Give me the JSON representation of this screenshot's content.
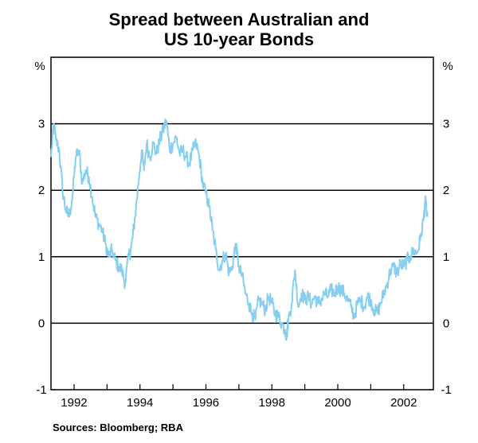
{
  "chart_data": {
    "type": "line",
    "title_lines": [
      "Spread between Australian and",
      "US 10-year Bonds"
    ],
    "unit_left": "%",
    "unit_right": "%",
    "source": "Sources: Bloomberg; RBA",
    "xlim": [
      1991.3,
      2002.9
    ],
    "ylim": [
      -1,
      4
    ],
    "y_ticks": [
      -1,
      0,
      1,
      2,
      3
    ],
    "y_tick_labels": [
      "-1",
      "0",
      "1",
      "2",
      "3"
    ],
    "x_ticks": [
      1992,
      1994,
      1996,
      1998,
      2000,
      2002
    ],
    "x_tick_labels": [
      "1992",
      "1994",
      "1996",
      "1998",
      "2000",
      "2002"
    ],
    "gridlines": [
      0,
      1,
      2,
      3
    ],
    "line_color": "#86cff0",
    "series": [
      {
        "x": [
          1991.3,
          1991.38,
          1991.45,
          1991.55,
          1991.65,
          1991.75,
          1991.85,
          1991.95,
          1992.05,
          1992.15,
          1992.25,
          1992.35,
          1992.45,
          1992.55,
          1992.65,
          1992.75,
          1992.85,
          1992.95,
          1993.05,
          1993.15,
          1993.25,
          1993.35,
          1993.45,
          1993.55,
          1993.65,
          1993.72,
          1993.78,
          1993.85,
          1993.95,
          1994.05,
          1994.12,
          1994.2,
          1994.3,
          1994.4,
          1994.5,
          1994.6,
          1994.7,
          1994.8,
          1994.9,
          1995.0,
          1995.1,
          1995.2,
          1995.3,
          1995.4,
          1995.5,
          1995.6,
          1995.7,
          1995.8,
          1995.9,
          1996.0,
          1996.1,
          1996.2,
          1996.3,
          1996.4,
          1996.5,
          1996.6,
          1996.7,
          1996.8,
          1996.9,
          1997.0,
          1997.1,
          1997.2,
          1997.3,
          1997.4,
          1997.5,
          1997.6,
          1997.7,
          1997.8,
          1997.9,
          1998.0,
          1998.1,
          1998.2,
          1998.3,
          1998.4,
          1998.45,
          1998.5,
          1998.6,
          1998.7,
          1998.8,
          1998.9,
          1999.0,
          1999.1,
          1999.2,
          1999.3,
          1999.4,
          1999.5,
          1999.6,
          1999.7,
          1999.8,
          1999.9,
          2000.0,
          2000.1,
          2000.2,
          2000.3,
          2000.4,
          2000.5,
          2000.6,
          2000.7,
          2000.8,
          2000.9,
          2001.0,
          2001.1,
          2001.2,
          2001.3,
          2001.4,
          2001.5,
          2001.6,
          2001.7,
          2001.8,
          2001.9,
          2002.0,
          2002.1,
          2002.2,
          2002.3,
          2002.4,
          2002.5,
          2002.6,
          2002.65,
          2002.72
        ],
        "values": [
          2.5,
          3.0,
          2.75,
          2.6,
          2.0,
          1.7,
          1.6,
          1.9,
          2.5,
          2.6,
          2.1,
          2.3,
          2.2,
          1.9,
          1.6,
          1.5,
          1.4,
          1.2,
          1.0,
          1.1,
          0.95,
          0.85,
          0.8,
          0.6,
          1.0,
          1.1,
          1.3,
          1.6,
          2.1,
          2.6,
          2.3,
          2.7,
          2.5,
          2.7,
          2.55,
          2.75,
          2.9,
          3.05,
          2.6,
          2.7,
          2.8,
          2.55,
          2.6,
          2.5,
          2.4,
          2.6,
          2.7,
          2.5,
          2.1,
          1.95,
          1.75,
          1.4,
          1.1,
          0.8,
          0.95,
          1.05,
          0.75,
          0.85,
          1.2,
          0.85,
          0.7,
          0.45,
          0.3,
          0.15,
          0.05,
          0.35,
          0.3,
          0.2,
          0.4,
          0.3,
          0.15,
          0.1,
          0.0,
          -0.1,
          -0.2,
          0.05,
          0.3,
          0.8,
          0.25,
          0.45,
          0.35,
          0.4,
          0.3,
          0.4,
          0.3,
          0.35,
          0.45,
          0.4,
          0.5,
          0.45,
          0.55,
          0.5,
          0.45,
          0.35,
          0.25,
          0.1,
          0.3,
          0.35,
          0.25,
          0.4,
          0.35,
          0.2,
          0.15,
          0.3,
          0.45,
          0.6,
          0.8,
          0.85,
          0.75,
          0.9,
          0.85,
          0.95,
          1.0,
          1.1,
          1.05,
          1.25,
          1.55,
          1.85,
          1.6
        ]
      }
    ]
  }
}
